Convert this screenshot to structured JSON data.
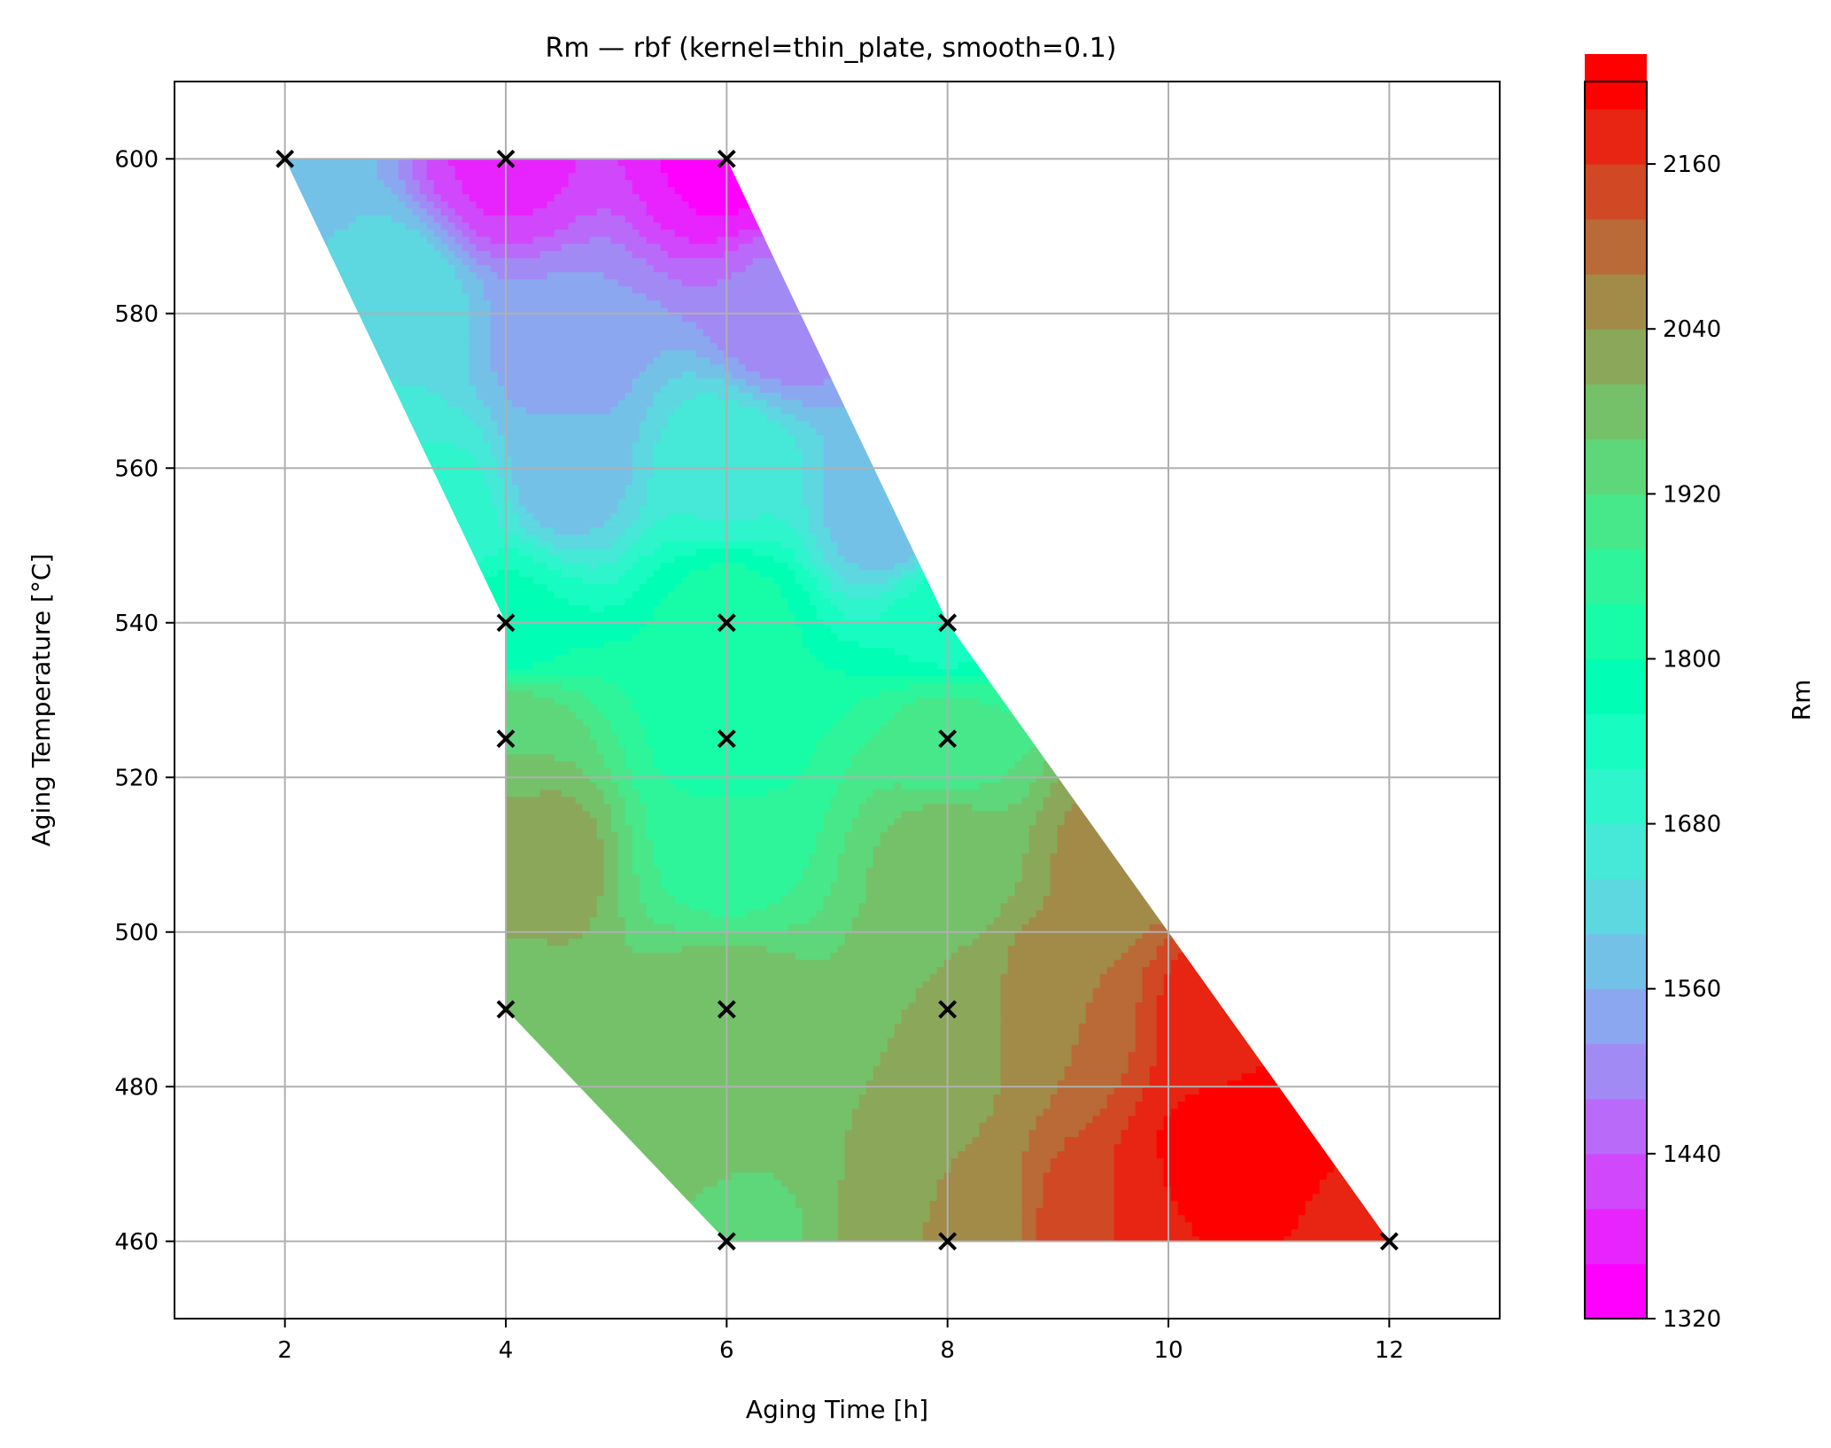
{
  "chart_data": {
    "type": "heatmap",
    "title": "Rm — rbf (kernel=thin_plate, smooth=0.1)",
    "xlabel": "Aging Time [h]",
    "ylabel": "Aging Temperature [°C]",
    "colorbar_label": "Rm",
    "xlim": [
      1,
      13
    ],
    "ylim": [
      450,
      610
    ],
    "x_ticks": [
      "2",
      "4",
      "6",
      "8",
      "10",
      "12"
    ],
    "y_ticks": [
      "460",
      "480",
      "500",
      "520",
      "540",
      "560",
      "580",
      "600"
    ],
    "colorbar_range": [
      1320,
      2220
    ],
    "colorbar_level_step": 40,
    "colorbar_ticks": [
      "1320",
      "1440",
      "1560",
      "1680",
      "1800",
      "1920",
      "2040",
      "2160"
    ],
    "grid": true,
    "colormap": "rainbow",
    "domain_polygon": [
      [
        2,
        600
      ],
      [
        6,
        600
      ],
      [
        8,
        540
      ],
      [
        12,
        460
      ],
      [
        6,
        460
      ],
      [
        4,
        490
      ],
      [
        4,
        540
      ]
    ],
    "sample_points": [
      {
        "time": 2,
        "temp": 600
      },
      {
        "time": 4,
        "temp": 600
      },
      {
        "time": 6,
        "temp": 600
      },
      {
        "time": 4,
        "temp": 540
      },
      {
        "time": 6,
        "temp": 540
      },
      {
        "time": 8,
        "temp": 540
      },
      {
        "time": 4,
        "temp": 525
      },
      {
        "time": 6,
        "temp": 525
      },
      {
        "time": 8,
        "temp": 525
      },
      {
        "time": 4,
        "temp": 490
      },
      {
        "time": 6,
        "temp": 490
      },
      {
        "time": 8,
        "temp": 490
      },
      {
        "time": 6,
        "temp": 460
      },
      {
        "time": 8,
        "temp": 460
      },
      {
        "time": 12,
        "temp": 460
      }
    ],
    "field_anchors": [
      {
        "time": 2,
        "temp": 600,
        "rm": 1580
      },
      {
        "time": 4,
        "temp": 600,
        "rm": 1390
      },
      {
        "time": 6,
        "temp": 600,
        "rm": 1350
      },
      {
        "time": 3,
        "temp": 580,
        "rm": 1640
      },
      {
        "time": 4.5,
        "temp": 575,
        "rm": 1530
      },
      {
        "time": 6.5,
        "temp": 580,
        "rm": 1490
      },
      {
        "time": 3.5,
        "temp": 555,
        "rm": 1690
      },
      {
        "time": 4.5,
        "temp": 560,
        "rm": 1570
      },
      {
        "time": 6,
        "temp": 560,
        "rm": 1670
      },
      {
        "time": 7.5,
        "temp": 555,
        "rm": 1560
      },
      {
        "time": 4,
        "temp": 540,
        "rm": 1770
      },
      {
        "time": 6,
        "temp": 540,
        "rm": 1820
      },
      {
        "time": 8,
        "temp": 540,
        "rm": 1740
      },
      {
        "time": 4,
        "temp": 525,
        "rm": 1960
      },
      {
        "time": 6,
        "temp": 525,
        "rm": 1820
      },
      {
        "time": 8,
        "temp": 525,
        "rm": 1900
      },
      {
        "time": 4.2,
        "temp": 510,
        "rm": 2040
      },
      {
        "time": 6,
        "temp": 510,
        "rm": 1860
      },
      {
        "time": 8,
        "temp": 510,
        "rm": 1980
      },
      {
        "time": 9.5,
        "temp": 510,
        "rm": 2050
      },
      {
        "time": 4,
        "temp": 490,
        "rm": 1980
      },
      {
        "time": 6,
        "temp": 490,
        "rm": 1990
      },
      {
        "time": 8,
        "temp": 490,
        "rm": 2000
      },
      {
        "time": 9,
        "temp": 490,
        "rm": 2080
      },
      {
        "time": 10.5,
        "temp": 490,
        "rm": 2180
      },
      {
        "time": 11,
        "temp": 475,
        "rm": 2210
      },
      {
        "time": 10.5,
        "temp": 470,
        "rm": 2220
      },
      {
        "time": 5.5,
        "temp": 475,
        "rm": 1990
      },
      {
        "time": 6,
        "temp": 460,
        "rm": 1950
      },
      {
        "time": 8,
        "temp": 460,
        "rm": 2040
      },
      {
        "time": 9.5,
        "temp": 460,
        "rm": 2160
      },
      {
        "time": 12,
        "temp": 460,
        "rm": 2170
      }
    ]
  }
}
